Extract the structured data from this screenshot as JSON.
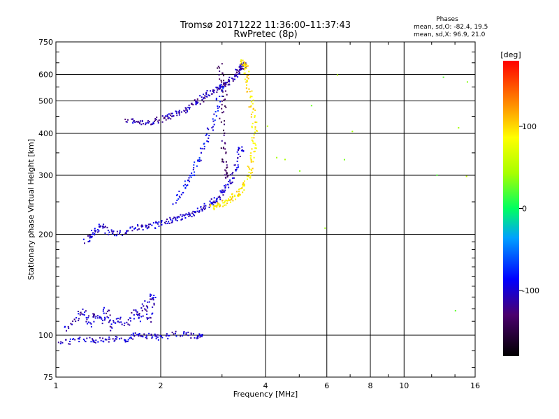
{
  "header": {
    "title": "Tromsø 20171222 11:36:00–11:37:43",
    "subtitle": "RwPretec (8p)"
  },
  "stats": {
    "heading": "Phases",
    "line_o": "mean, sd,O: -82.4, 19.5",
    "line_x": "mean, sd,X:  96.9, 21.0"
  },
  "chart_data": {
    "type": "scatter",
    "xlabel": "Frequency [MHz]",
    "ylabel": "Stationary phase Virtual Height [km]",
    "xscale": "log",
    "yscale": "log",
    "xlim": [
      1,
      16
    ],
    "ylim": [
      75,
      750
    ],
    "x_ticks": [
      1,
      2,
      4,
      6,
      8,
      10,
      16
    ],
    "y_ticks": [
      75,
      100,
      200,
      300,
      400,
      500,
      600,
      750
    ],
    "grid": true,
    "colorbar": {
      "label": "[deg]",
      "range": [
        -180,
        180
      ],
      "ticks": [
        -100,
        0,
        100
      ]
    },
    "traces": [
      {
        "desc": "low layer",
        "x": [
          1.0,
          1.1,
          1.2,
          1.3,
          1.4,
          1.5,
          1.6,
          1.7,
          1.8,
          1.9,
          2.0,
          2.2,
          2.4,
          2.6
        ],
        "y": [
          95,
          96,
          97,
          97,
          96,
          98,
          97,
          100,
          99,
          100,
          98,
          101,
          100,
          99
        ],
        "phase": -100
      },
      {
        "desc": "low scatter",
        "x": [
          1.05,
          1.15,
          1.2,
          1.25,
          1.3,
          1.35,
          1.4,
          1.45,
          1.5,
          1.6,
          1.7,
          1.75,
          1.8,
          1.85,
          1.9
        ],
        "y": [
          104,
          112,
          118,
          108,
          115,
          110,
          120,
          105,
          112,
          108,
          118,
          112,
          125,
          110,
          130
        ],
        "phase": -105
      },
      {
        "desc": "lower O trace",
        "x": [
          1.22,
          1.26,
          1.3,
          1.35,
          1.4,
          1.5,
          1.6,
          1.7,
          1.8,
          1.9,
          2.0,
          2.1,
          2.2,
          2.3,
          2.4,
          2.5,
          2.6,
          2.7,
          2.8,
          2.9,
          3.0,
          3.1,
          3.2,
          3.3,
          3.4
        ],
        "y": [
          190,
          198,
          205,
          212,
          205,
          200,
          205,
          210,
          210,
          212,
          215,
          218,
          222,
          225,
          228,
          232,
          236,
          242,
          248,
          255,
          265,
          278,
          295,
          320,
          360
        ],
        "phase": -100
      },
      {
        "desc": "upper O trace",
        "x": [
          1.6,
          1.7,
          1.8,
          1.9,
          2.0,
          2.1,
          2.2,
          2.3,
          2.4,
          2.5,
          2.6,
          2.7,
          2.8,
          2.9,
          3.0,
          3.1,
          3.2,
          3.3,
          3.35,
          3.4,
          3.45
        ],
        "y": [
          440,
          432,
          430,
          432,
          440,
          448,
          455,
          465,
          478,
          490,
          505,
          518,
          530,
          545,
          555,
          565,
          580,
          600,
          615,
          630,
          640
        ],
        "phase": -110
      },
      {
        "desc": "upper O second branch",
        "x": [
          2.2,
          2.3,
          2.4,
          2.5,
          2.6,
          2.7,
          2.8,
          2.9,
          3.0
        ],
        "y": [
          250,
          268,
          290,
          310,
          340,
          380,
          420,
          480,
          550
        ],
        "phase": -85
      },
      {
        "desc": "F2 cusp O",
        "x": [
          2.95,
          3.0,
          3.05,
          3.0,
          3.02,
          3.05,
          3.1
        ],
        "y": [
          640,
          580,
          520,
          450,
          380,
          330,
          300
        ],
        "phase": -135
      },
      {
        "desc": "X trace",
        "x": [
          2.8,
          2.9,
          3.0,
          3.1,
          3.2,
          3.3,
          3.4,
          3.5,
          3.6,
          3.65,
          3.7,
          3.72,
          3.7,
          3.65,
          3.6,
          3.55,
          3.5,
          3.45
        ],
        "y": [
          240,
          242,
          246,
          250,
          255,
          262,
          272,
          285,
          305,
          330,
          360,
          400,
          440,
          490,
          540,
          590,
          630,
          650
        ],
        "phase": 95
      },
      {
        "desc": "scattered echoes",
        "x": [
          4.1,
          4.3,
          4.6,
          5.0,
          5.5,
          6.0,
          6.5,
          6.7,
          7.0,
          12.5,
          13.0,
          14.0,
          14.5,
          15.0,
          15.2
        ],
        "y": [
          420,
          340,
          330,
          310,
          480,
          210,
          590,
          330,
          400,
          300,
          590,
          120,
          420,
          300,
          560
        ],
        "phase": 40
      }
    ]
  }
}
